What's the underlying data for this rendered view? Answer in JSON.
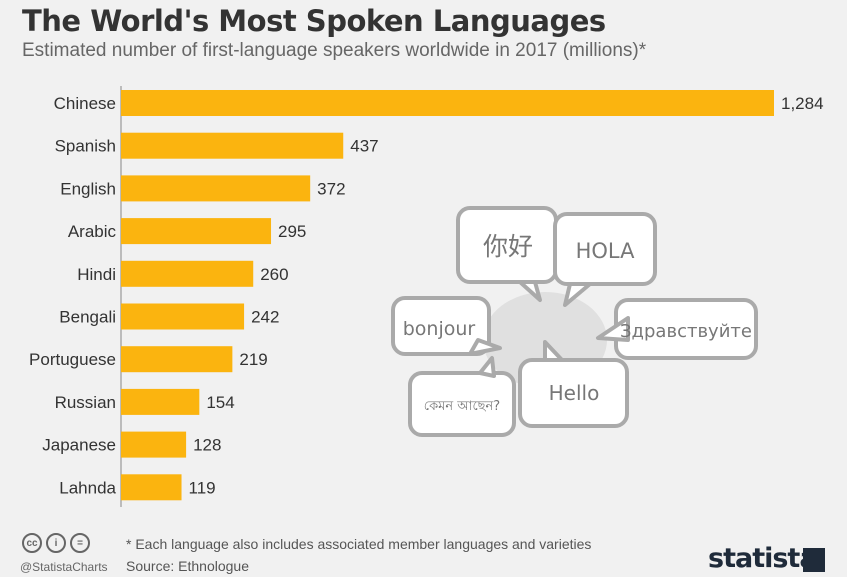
{
  "header": {
    "title": "The World's Most Spoken Languages",
    "subtitle": "Estimated number of first-language speakers worldwide in 2017 (millions)*"
  },
  "chart_data": {
    "type": "bar",
    "orientation": "horizontal",
    "categories": [
      "Chinese",
      "Spanish",
      "English",
      "Arabic",
      "Hindi",
      "Bengali",
      "Portuguese",
      "Russian",
      "Japanese",
      "Lahnda"
    ],
    "values": [
      1284,
      437,
      372,
      295,
      260,
      242,
      219,
      154,
      128,
      119
    ],
    "value_labels": [
      "1,284",
      "437",
      "372",
      "295",
      "260",
      "242",
      "219",
      "154",
      "128",
      "119"
    ],
    "xlim": [
      0,
      1284
    ],
    "bar_color": "#fbb40f",
    "grid": false,
    "legend": "none"
  },
  "illustration": {
    "speech_bubbles": [
      "你好",
      "HOLA",
      "bonjour",
      "Здравствуйте",
      "Hello",
      "কেমন আছেন?"
    ],
    "bubble_stroke": "#aaaaaa",
    "bubble_fill": "#ffffff",
    "blob_fill": "#e0e0e0"
  },
  "footer": {
    "license_icons": [
      "cc-icon",
      "by-icon",
      "nd-icon"
    ],
    "license_glyphs": [
      "cc",
      "i",
      "="
    ],
    "handle": "@StatistaCharts",
    "note": "* Each language also includes associated member languages and varieties",
    "source": "Source: Ethnologue",
    "brand": "statista"
  }
}
